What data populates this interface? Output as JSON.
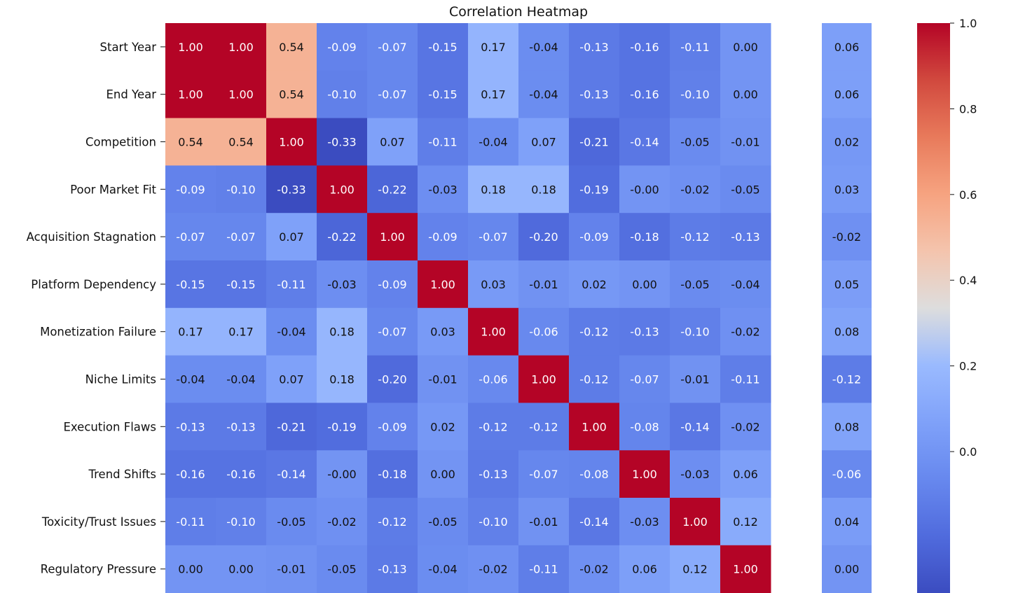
{
  "chart_data": {
    "type": "heatmap",
    "title": "Correlation Heatmap",
    "row_labels": [
      "Start Year",
      "End Year",
      "Competition",
      "Poor Market Fit",
      "Acquisition Stagnation",
      "Platform Dependency",
      "Monetization Failure",
      "Niche Limits",
      "Execution Flaws",
      "Trend Shifts",
      "Toxicity/Trust Issues",
      "Regulatory Pressure"
    ],
    "matrix": [
      [
        1.0,
        1.0,
        0.54,
        -0.09,
        -0.07,
        -0.15,
        0.17,
        -0.04,
        -0.13,
        -0.16,
        -0.11,
        0.0
      ],
      [
        1.0,
        1.0,
        0.54,
        -0.1,
        -0.07,
        -0.15,
        0.17,
        -0.04,
        -0.13,
        -0.16,
        -0.1,
        0.0
      ],
      [
        0.54,
        0.54,
        1.0,
        -0.33,
        0.07,
        -0.11,
        -0.04,
        0.07,
        -0.21,
        -0.14,
        -0.05,
        -0.01
      ],
      [
        -0.09,
        -0.1,
        -0.33,
        1.0,
        -0.22,
        -0.03,
        0.18,
        0.18,
        -0.19,
        -0.0,
        -0.02,
        -0.05
      ],
      [
        -0.07,
        -0.07,
        0.07,
        -0.22,
        1.0,
        -0.09,
        -0.07,
        -0.2,
        -0.09,
        -0.18,
        -0.12,
        -0.13
      ],
      [
        -0.15,
        -0.15,
        -0.11,
        -0.03,
        -0.09,
        1.0,
        0.03,
        -0.01,
        0.02,
        0.0,
        -0.05,
        -0.04
      ],
      [
        0.17,
        0.17,
        -0.04,
        0.18,
        -0.07,
        0.03,
        1.0,
        -0.06,
        -0.12,
        -0.13,
        -0.1,
        -0.02
      ],
      [
        -0.04,
        -0.04,
        0.07,
        0.18,
        -0.2,
        -0.01,
        -0.06,
        1.0,
        -0.12,
        -0.07,
        -0.01,
        -0.11
      ],
      [
        -0.13,
        -0.13,
        -0.21,
        -0.19,
        -0.09,
        0.02,
        -0.12,
        -0.12,
        1.0,
        -0.08,
        -0.14,
        -0.02
      ],
      [
        -0.16,
        -0.16,
        -0.14,
        -0.0,
        -0.18,
        0.0,
        -0.13,
        -0.07,
        -0.08,
        1.0,
        -0.03,
        0.06
      ],
      [
        -0.11,
        -0.1,
        -0.05,
        -0.02,
        -0.12,
        -0.05,
        -0.1,
        -0.01,
        -0.14,
        -0.03,
        1.0,
        0.12
      ],
      [
        0.0,
        0.0,
        -0.01,
        -0.05,
        -0.13,
        -0.04,
        -0.02,
        -0.11,
        -0.02,
        0.06,
        0.12,
        1.0
      ]
    ],
    "extra_column": [
      0.06,
      0.06,
      0.02,
      0.03,
      -0.02,
      0.05,
      0.08,
      -0.12,
      0.08,
      -0.06,
      0.04,
      0.0
    ],
    "colormap": "coolwarm",
    "vmin": -0.33,
    "vmax": 1.0,
    "colorbar_ticks": [
      "1.0",
      "0.8",
      "0.6",
      "0.4",
      "0.2",
      "0.0"
    ],
    "colorbar_tick_values": [
      1.0,
      0.8,
      0.6,
      0.4,
      0.2,
      0.0
    ],
    "colors": {
      "low": "#3b4cc0",
      "mid": "#dddddd",
      "high": "#b40426"
    }
  }
}
